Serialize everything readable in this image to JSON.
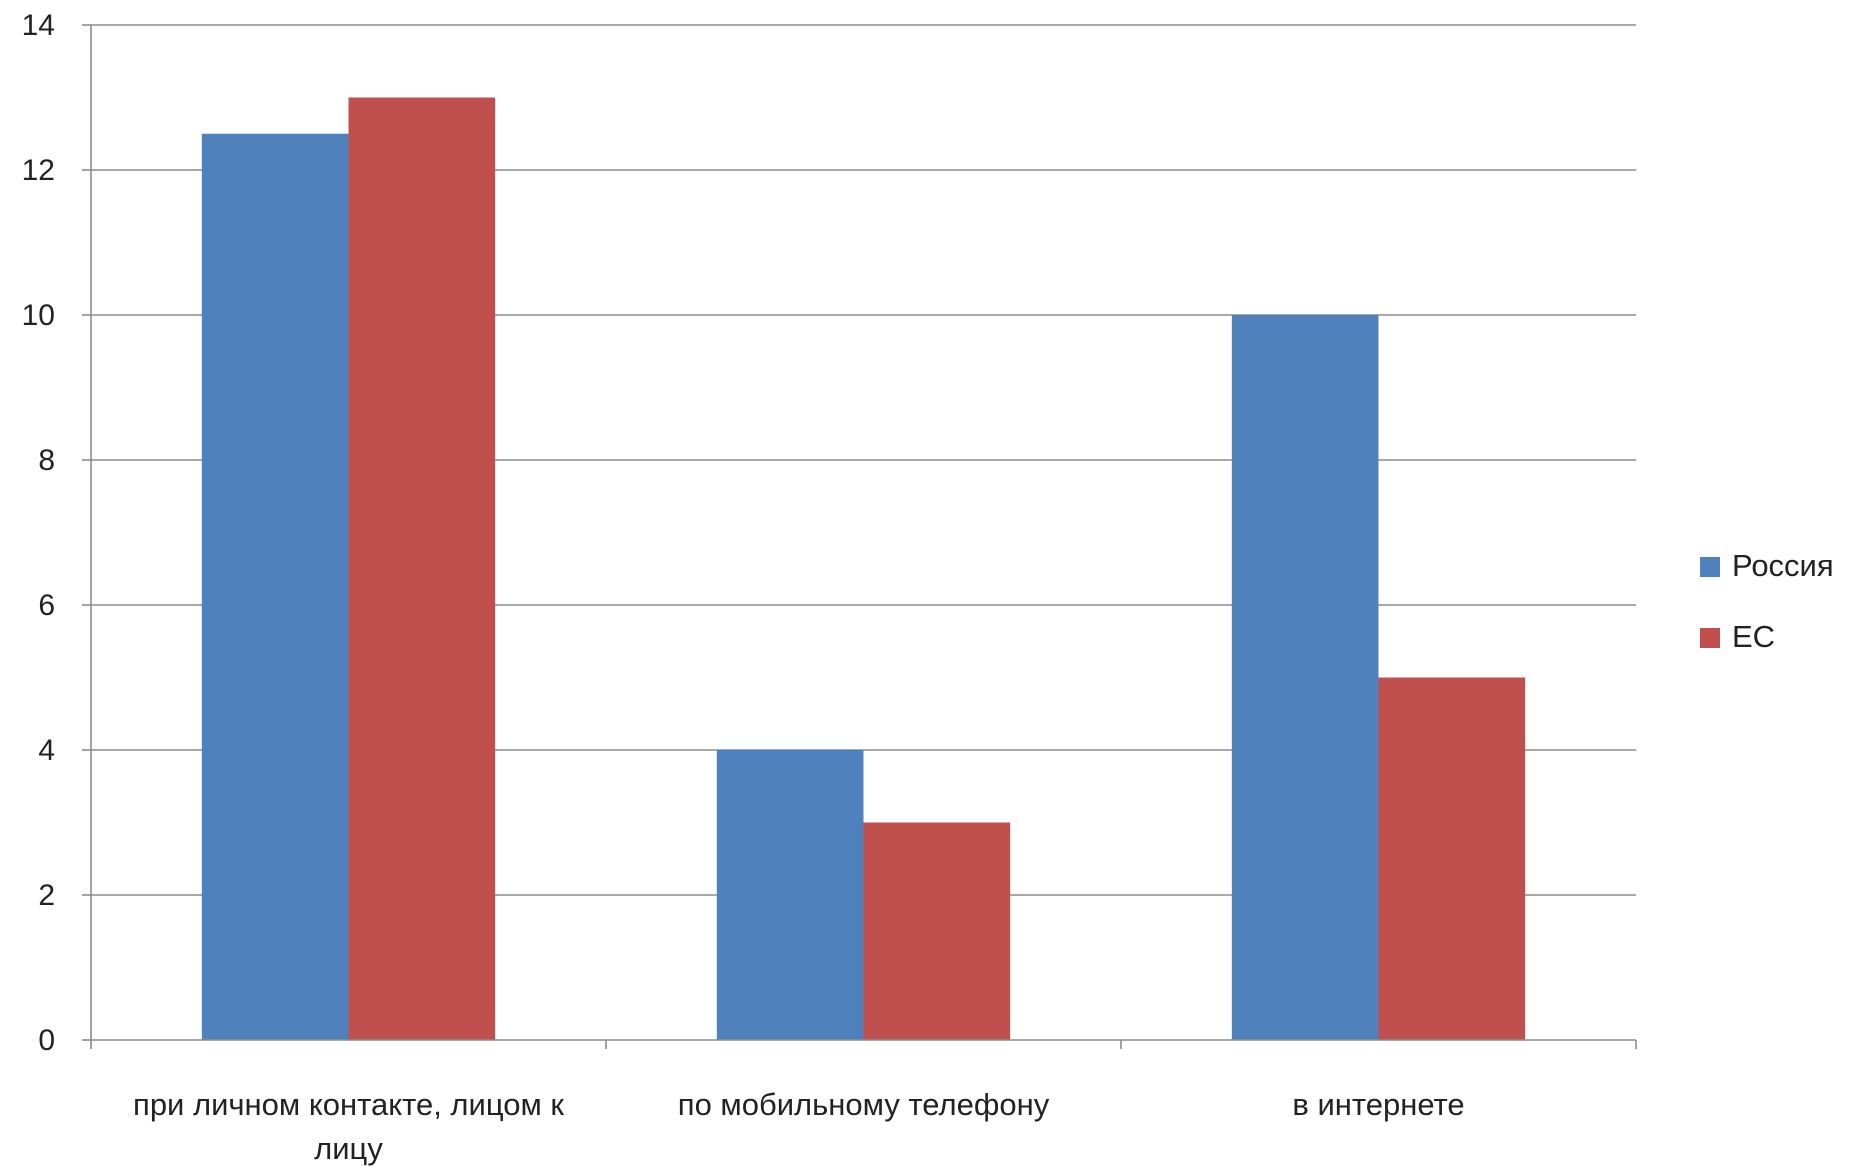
{
  "chart_data": {
    "type": "bar",
    "title": "",
    "xlabel": "",
    "ylabel": "",
    "categories": [
      [
        "при личном контакте, лицом к",
        "лицу"
      ],
      [
        "по мобильному телефону"
      ],
      [
        "в интернете"
      ]
    ],
    "series": [
      {
        "name": "Россия",
        "color": "#4F81BD",
        "values": [
          12.5,
          4,
          10
        ]
      },
      {
        "name": "ЕС",
        "color": "#C0504D",
        "values": [
          13,
          3,
          5
        ]
      }
    ],
    "ylim": [
      0,
      14
    ],
    "yticks": [
      0,
      2,
      4,
      6,
      8,
      10,
      12,
      14
    ],
    "grid": true,
    "legend_position": "right"
  }
}
